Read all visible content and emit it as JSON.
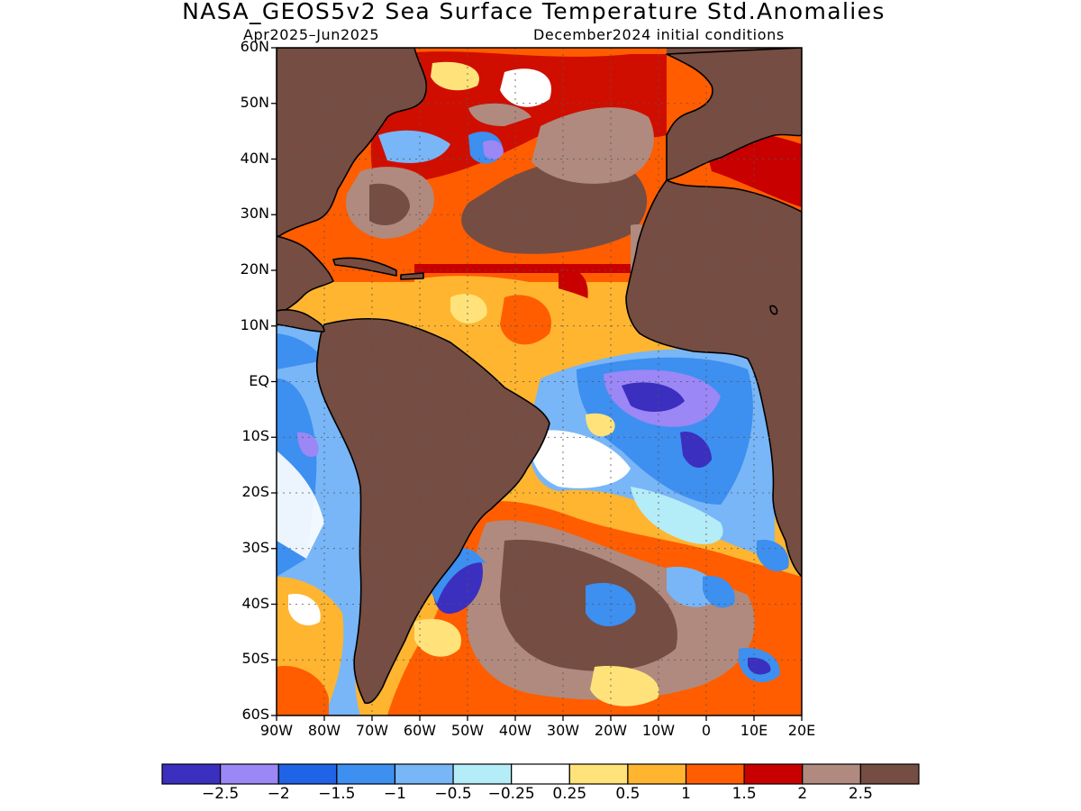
{
  "header": {
    "title": "NASA_GEOS5v2 Sea Surface Temperature Std.Anomalies",
    "period": "Apr2025–Jun2025",
    "init": "December2024 initial conditions"
  },
  "axes": {
    "lat_labels": [
      "60N",
      "50N",
      "40N",
      "30N",
      "20N",
      "10N",
      "EQ",
      "10S",
      "20S",
      "30S",
      "40S",
      "50S",
      "60S"
    ],
    "lon_labels": [
      "90W",
      "80W",
      "70W",
      "60W",
      "50W",
      "40W",
      "30W",
      "20W",
      "10W",
      "0",
      "10E",
      "20E"
    ]
  },
  "colorbar": {
    "labels": [
      "−2.5",
      "−2",
      "−1.5",
      "−1",
      "−0.5",
      "−0.25",
      "0.25",
      "0.5",
      "1",
      "1.5",
      "2",
      "2.5"
    ],
    "colors": [
      "#3b2fbf",
      "#9b87f5",
      "#1f63e6",
      "#3d8ff0",
      "#78b6f7",
      "#b4ecf8",
      "#ffffff",
      "#ffe37a",
      "#ffb530",
      "#ff5d00",
      "#c80000",
      "#b08a7e",
      "#754d42"
    ]
  },
  "map": {
    "land_color": "#754d42",
    "lat_range": [
      -60,
      60
    ],
    "lon_range": [
      -90,
      20
    ]
  }
}
